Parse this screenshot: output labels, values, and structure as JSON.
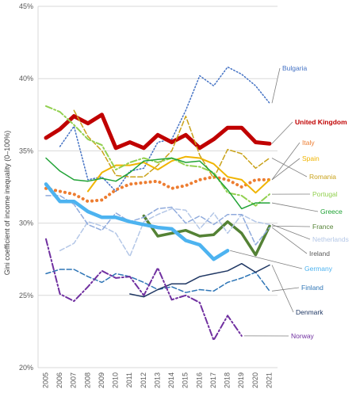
{
  "chart_data": {
    "type": "line",
    "title": "",
    "xlabel": "",
    "ylabel": "Gini coefficient of income inequality (0–100%)",
    "x": [
      2005,
      2006,
      2007,
      2008,
      2009,
      2010,
      2011,
      2012,
      2013,
      2014,
      2015,
      2016,
      2017,
      2018,
      2019,
      2020,
      2021
    ],
    "ylim": [
      20,
      45
    ],
    "yticks": [
      "20%",
      "25%",
      "30%",
      "35%",
      "40%",
      "45%"
    ],
    "ytick_values": [
      20,
      25,
      30,
      35,
      40,
      45
    ],
    "grid": "horizontal",
    "legend": "direct labels at right end of lines",
    "series": [
      {
        "name": "Bulgaria",
        "color": "#4472c4",
        "style": "dotted",
        "width": 1.5,
        "values": [
          null,
          35.3,
          36.7,
          33.0,
          33.2,
          32.2,
          33.6,
          33.8,
          35.6,
          35.8,
          37.8,
          40.2,
          39.5,
          40.8,
          40.3,
          39.5,
          38.3
        ]
      },
      {
        "name": "United Kingdom",
        "color": "#c00000",
        "style": "solid",
        "width": 5,
        "values": [
          35.9,
          36.5,
          37.4,
          36.9,
          37.5,
          35.2,
          35.6,
          35.2,
          36.1,
          35.6,
          36.1,
          35.2,
          35.8,
          36.6,
          36.6,
          35.6,
          35.5
        ]
      },
      {
        "name": "Italy",
        "color": "#ed7d31",
        "style": "dotted-round",
        "width": 4,
        "values": [
          32.4,
          32.2,
          32.0,
          31.5,
          31.6,
          32.3,
          32.7,
          32.8,
          32.9,
          32.4,
          32.6,
          33.0,
          33.2,
          33.0,
          32.5,
          33.0,
          33.0
        ]
      },
      {
        "name": "Spain",
        "color": "#f0b400",
        "style": "solid",
        "width": 2,
        "values": [
          null,
          null,
          null,
          32.2,
          33.5,
          34.0,
          34.0,
          34.2,
          33.7,
          34.3,
          34.6,
          34.5,
          34.1,
          33.2,
          33.0,
          32.1,
          33.0
        ]
      },
      {
        "name": "Romania",
        "color": "#c9a21a",
        "style": "dashed",
        "width": 1.5,
        "values": [
          null,
          null,
          37.8,
          36.0,
          35.0,
          33.3,
          33.2,
          33.2,
          34.0,
          35.0,
          37.4,
          34.7,
          33.1,
          35.1,
          34.8,
          33.8,
          34.5
        ]
      },
      {
        "name": "Portugal",
        "color": "#92d050",
        "style": "dashdot",
        "width": 2,
        "values": [
          38.1,
          37.7,
          36.8,
          35.8,
          35.4,
          33.7,
          34.2,
          34.5,
          34.2,
          34.5,
          34.0,
          33.9,
          33.5,
          32.1,
          31.9,
          31.2,
          32.0
        ]
      },
      {
        "name": "Greece",
        "color": "#21a336",
        "style": "solid",
        "width": 1.5,
        "values": [
          34.5,
          33.6,
          33.0,
          32.9,
          33.1,
          32.9,
          33.5,
          34.3,
          34.4,
          34.5,
          34.2,
          34.3,
          33.4,
          32.3,
          31.0,
          31.4,
          31.4
        ]
      },
      {
        "name": "France",
        "color": "#548235",
        "style": "solid",
        "width": 3.5,
        "values": [
          null,
          null,
          null,
          null,
          null,
          null,
          null,
          30.5,
          29.1,
          29.3,
          29.5,
          29.1,
          29.2,
          30.1,
          29.3,
          27.8,
          29.8
        ]
      },
      {
        "name": "Netherlands",
        "color": "#b4c7e7",
        "style": "dashed",
        "width": 1.5,
        "values": [
          null,
          28.1,
          28.6,
          30.1,
          29.8,
          29.3,
          27.7,
          30.1,
          30.6,
          31.0,
          30.9,
          29.6,
          30.7,
          29.3,
          30.6,
          30.1,
          29.9
        ]
      },
      {
        "name": "Ireland",
        "color": "#8faadc",
        "style": "dashed",
        "width": 1.5,
        "values": [
          31.9,
          31.9,
          31.3,
          29.9,
          29.5,
          30.7,
          30.1,
          30.4,
          31.0,
          31.1,
          30.0,
          30.5,
          29.9,
          30.6,
          30.6,
          28.5,
          29.7
        ]
      },
      {
        "name": "Germany",
        "color": "#4db3f0",
        "style": "solid",
        "width": 4.5,
        "values": [
          32.7,
          31.5,
          31.5,
          30.8,
          30.4,
          30.4,
          30.1,
          29.9,
          29.7,
          29.6,
          28.8,
          28.5,
          27.5,
          28.1,
          null,
          null,
          null
        ]
      },
      {
        "name": "Finland",
        "color": "#2e75b6",
        "style": "dashed",
        "width": 1.5,
        "values": [
          26.5,
          26.8,
          26.8,
          26.3,
          25.9,
          26.5,
          26.3,
          25.9,
          25.4,
          25.6,
          25.2,
          25.4,
          25.3,
          25.9,
          26.2,
          26.6,
          25.3
        ]
      },
      {
        "name": "Denmark",
        "color": "#203864",
        "style": "solid",
        "width": 1.5,
        "values": [
          null,
          null,
          null,
          null,
          null,
          null,
          25.1,
          24.9,
          25.4,
          25.8,
          25.8,
          26.3,
          26.5,
          26.7,
          27.2,
          26.6,
          27.1
        ]
      },
      {
        "name": "Norway",
        "color": "#7030a0",
        "style": "dashdot",
        "width": 2,
        "values": [
          28.9,
          25.1,
          24.6,
          25.6,
          26.7,
          26.2,
          26.3,
          25.0,
          26.9,
          24.7,
          25.0,
          24.5,
          21.9,
          23.6,
          22.2,
          null,
          null
        ]
      }
    ],
    "labels": [
      {
        "text": "Bulgaria",
        "color": "#4472c4",
        "bold": false
      },
      {
        "text": "United Kingdom",
        "color": "#c00000",
        "bold": true
      },
      {
        "text": "Italy",
        "color": "#ed7d31",
        "bold": false
      },
      {
        "text": "Spain",
        "color": "#f0b400",
        "bold": false
      },
      {
        "text": "Romania",
        "color": "#c9a21a",
        "bold": false
      },
      {
        "text": "Portugal",
        "color": "#92d050",
        "bold": false
      },
      {
        "text": "Greece",
        "color": "#21a336",
        "bold": false
      },
      {
        "text": "France",
        "color": "#548235",
        "bold": false
      },
      {
        "text": "Netherlands",
        "color": "#b4c7e7",
        "bold": false
      },
      {
        "text": "Ireland",
        "color": "#595959",
        "bold": false
      },
      {
        "text": "Germany",
        "color": "#4db3f0",
        "bold": false
      },
      {
        "text": "Finland",
        "color": "#2e75b6",
        "bold": false
      },
      {
        "text": "Denmark",
        "color": "#203864",
        "bold": false
      },
      {
        "text": "Norway",
        "color": "#7030a0",
        "bold": false
      }
    ]
  }
}
